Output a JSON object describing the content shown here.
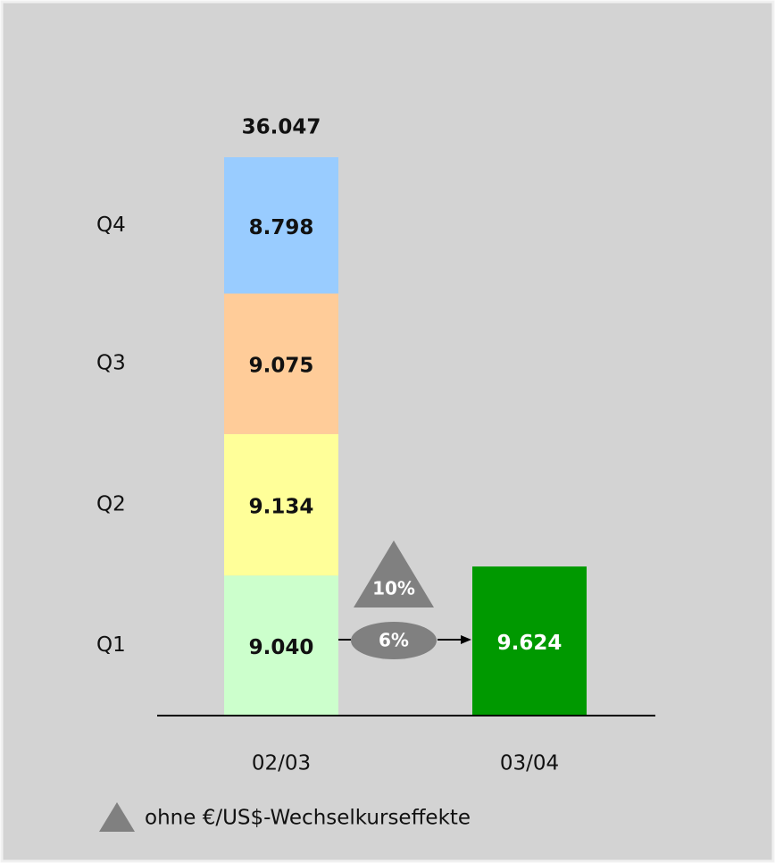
{
  "chart_data": {
    "type": "stacked_bar",
    "categories": [
      "02/03",
      "03/04"
    ],
    "series": [
      {
        "name": "Q1",
        "color": "#ccffcc",
        "colors": [
          "#ccffcc",
          "#009900"
        ],
        "values": [
          9040,
          9624
        ],
        "value_labels": [
          "9.040",
          "9.624"
        ]
      },
      {
        "name": "Q2",
        "color": "#ffff99",
        "values": [
          9134,
          null
        ],
        "value_labels": [
          "9.134",
          null
        ]
      },
      {
        "name": "Q3",
        "color": "#ffcc99",
        "values": [
          9075,
          null
        ],
        "value_labels": [
          "9.075",
          null
        ]
      },
      {
        "name": "Q4",
        "color": "#99ccff",
        "values": [
          8798,
          null
        ],
        "value_labels": [
          "8.798",
          null
        ]
      }
    ],
    "total": {
      "value": 36047,
      "label": "36.047"
    },
    "growth": {
      "nominal": "6%",
      "fx_adjusted": "10%"
    },
    "note": "ohne €/US$-Wechselkurseffekte"
  }
}
